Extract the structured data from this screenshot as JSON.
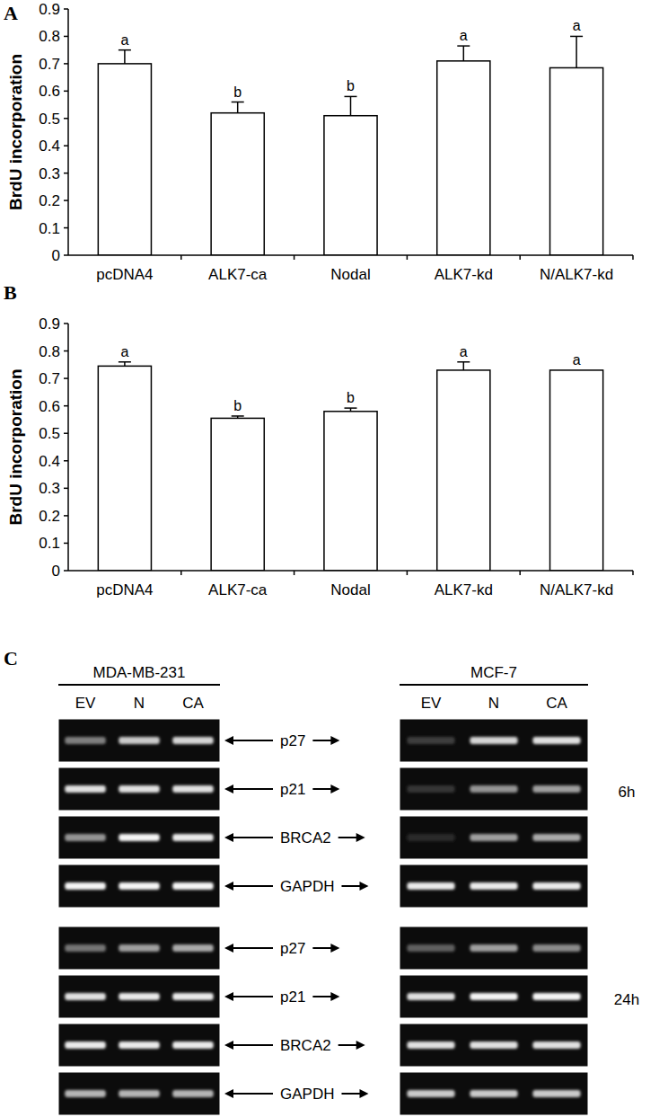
{
  "chart_data": [
    {
      "type": "bar",
      "title": "A",
      "y_label": "BrdU incorporation",
      "categories": [
        "pcDNA4",
        "ALK7-ca",
        "Nodal",
        "ALK7-kd",
        "N/ALK7-kd"
      ],
      "values": [
        0.7,
        0.52,
        0.51,
        0.71,
        0.685
      ],
      "errors": [
        0.05,
        0.04,
        0.07,
        0.055,
        0.115
      ],
      "annotations": [
        "a",
        "b",
        "b",
        "a",
        "a"
      ],
      "color": "#ffffff",
      "ylim": [
        0,
        0.9
      ],
      "yticks": [
        0,
        0.1,
        0.2,
        0.3,
        0.4,
        0.5,
        0.6,
        0.7,
        0.8,
        0.9
      ],
      "grid": false
    },
    {
      "type": "bar",
      "title": "B",
      "y_label": "BrdU incorporation",
      "categories": [
        "pcDNA4",
        "ALK7-ca",
        "Nodal",
        "ALK7-kd",
        "N/ALK7-kd"
      ],
      "values": [
        0.745,
        0.555,
        0.58,
        0.73,
        0.73
      ],
      "errors": [
        0.015,
        0.008,
        0.012,
        0.03,
        0
      ],
      "annotations": [
        "a",
        "b",
        "b",
        "a",
        "a"
      ],
      "color": "#ffffff",
      "ylim": [
        0,
        0.9
      ],
      "yticks": [
        0,
        0.1,
        0.2,
        0.3,
        0.4,
        0.5,
        0.6,
        0.7,
        0.8,
        0.9
      ],
      "grid": false
    }
  ],
  "gel": {
    "label": "C",
    "cell_lines": [
      {
        "name": "MDA-MB-231",
        "lanes": [
          "EV",
          "N",
          "CA"
        ]
      },
      {
        "name": "MCF-7",
        "lanes": [
          "EV",
          "N",
          "CA"
        ]
      }
    ],
    "timepoints": [
      {
        "label": "6h",
        "genes": [
          "p27",
          "p21",
          "BRCA2",
          "GAPDH"
        ],
        "intensity": [
          [
            [
              0.45,
              0.8,
              0.85
            ],
            [
              0.9,
              0.9,
              0.9
            ],
            [
              0.55,
              1.0,
              0.95
            ],
            [
              1.0,
              1.0,
              1.0
            ]
          ],
          [
            [
              0.15,
              0.85,
              0.9
            ],
            [
              0.1,
              0.55,
              0.6
            ],
            [
              0.05,
              0.6,
              0.65
            ],
            [
              0.95,
              0.95,
              0.95
            ]
          ]
        ]
      },
      {
        "label": "24h",
        "genes": [
          "p27",
          "p21",
          "BRCA2",
          "GAPDH"
        ],
        "intensity": [
          [
            [
              0.4,
              0.6,
              0.65
            ],
            [
              0.9,
              0.95,
              0.95
            ],
            [
              0.95,
              0.95,
              0.95
            ],
            [
              0.7,
              0.7,
              0.7
            ]
          ],
          [
            [
              0.3,
              0.6,
              0.5
            ],
            [
              0.9,
              1.0,
              1.0
            ],
            [
              0.9,
              0.9,
              0.9
            ],
            [
              0.8,
              0.8,
              0.8
            ]
          ]
        ]
      }
    ]
  }
}
